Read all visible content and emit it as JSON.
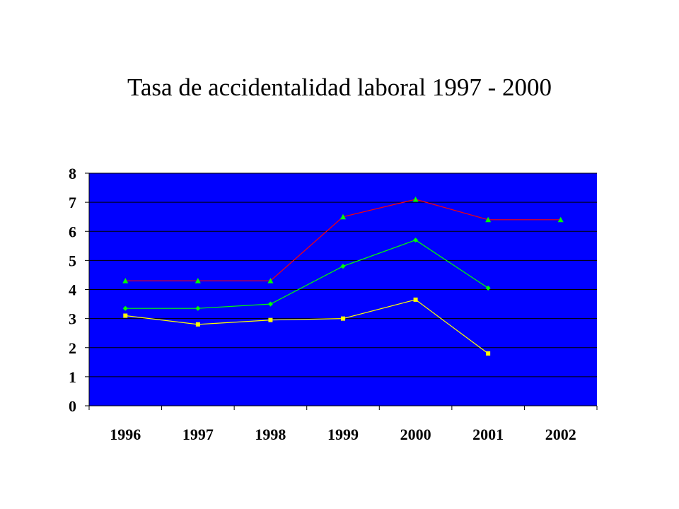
{
  "slide": {
    "title": "Tasa de accidentalidad laboral 1997 - 2000"
  },
  "chart_data": {
    "type": "line",
    "title": "Tasa de accidentalidad laboral 1997 - 2000",
    "xlabel": "",
    "ylabel": "",
    "categories": [
      "1996",
      "1997",
      "1998",
      "1999",
      "2000",
      "2001",
      "2002"
    ],
    "ylim": [
      0,
      8
    ],
    "yticks": [
      "0",
      "1",
      "2",
      "3",
      "4",
      "5",
      "6",
      "7",
      "8"
    ],
    "grid": true,
    "legend": "none",
    "plot_background": "#0000FF",
    "series": [
      {
        "color": "#FF0000",
        "marker": "triangle",
        "marker_color": "#00FF00",
        "values": [
          4.3,
          4.3,
          4.3,
          6.5,
          7.1,
          6.4,
          6.4
        ]
      },
      {
        "color": "#00FF00",
        "marker": "diamond",
        "marker_color": "#00FF00",
        "values": [
          3.35,
          3.35,
          3.5,
          4.8,
          5.7,
          4.05,
          null
        ]
      },
      {
        "color": "#FFFF00",
        "marker": "square",
        "marker_color": "#FFFF00",
        "values": [
          3.1,
          2.8,
          2.95,
          3.0,
          3.65,
          1.8,
          null
        ]
      }
    ]
  }
}
